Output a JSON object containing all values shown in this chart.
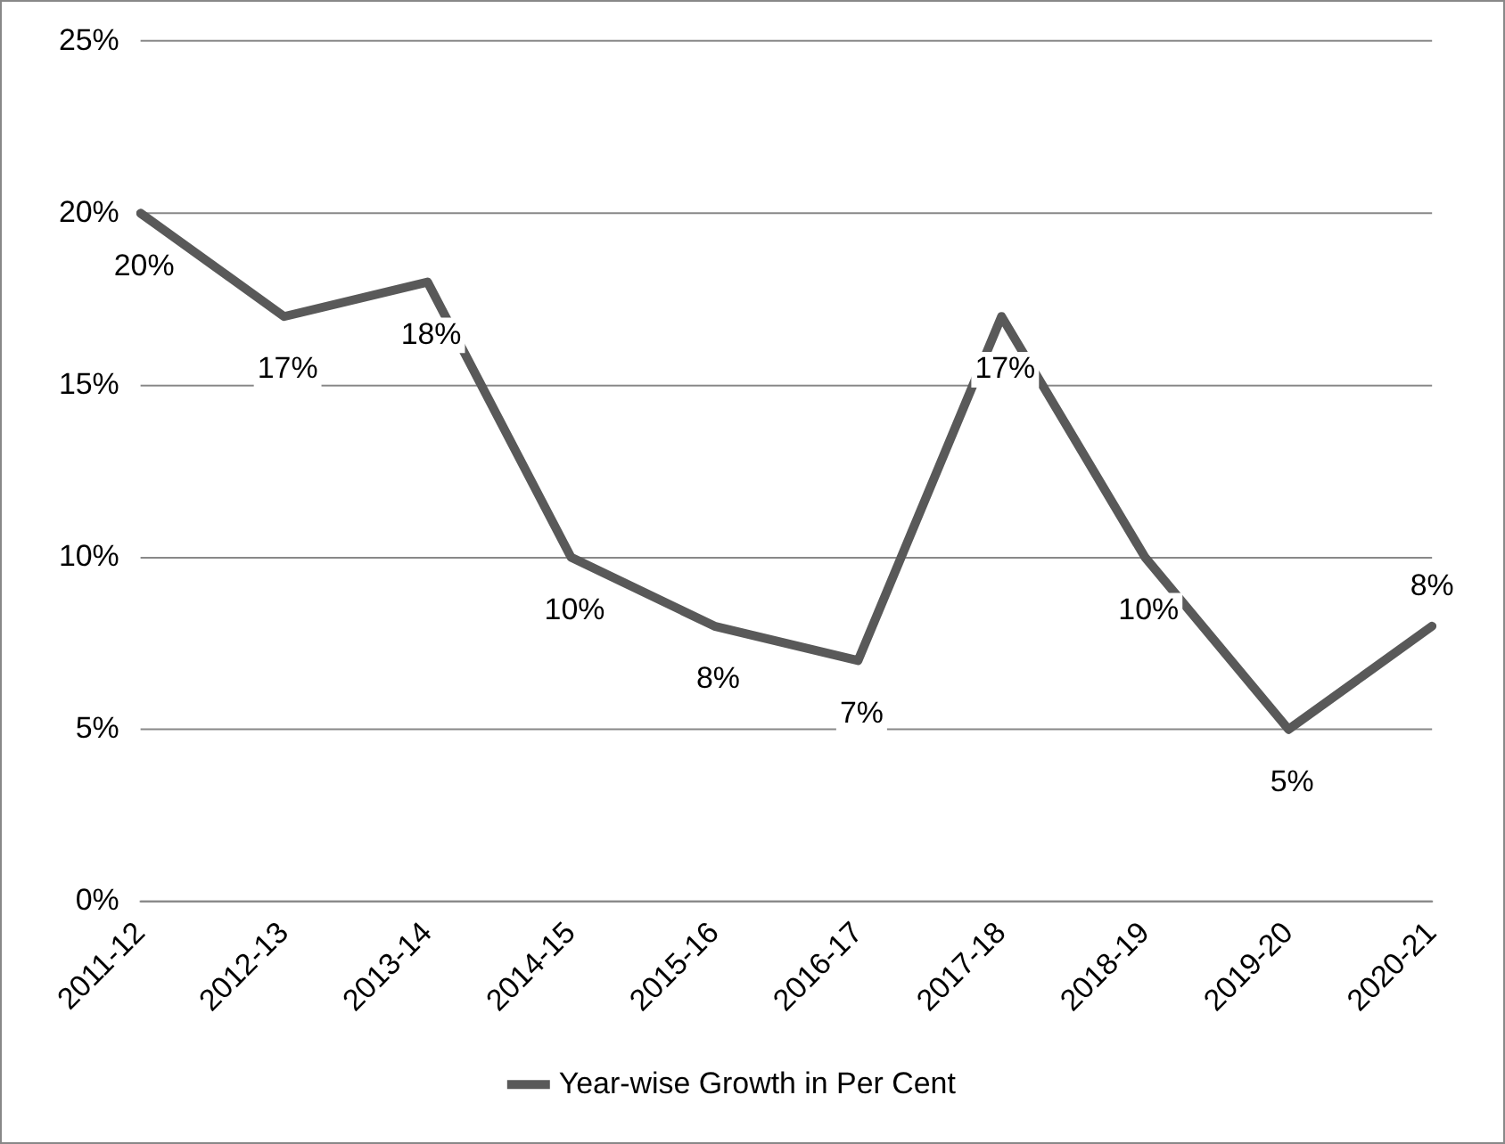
{
  "chart_data": {
    "type": "line",
    "categories": [
      "2011-12",
      "2012-13",
      "2013-14",
      "2014-15",
      "2015-16",
      "2016-17",
      "2017-18",
      "2018-19",
      "2019-20",
      "2020-21"
    ],
    "series": [
      {
        "name": "Year-wise Growth in Per Cent",
        "color": "#595959",
        "values": [
          20,
          17,
          18,
          10,
          8,
          7,
          17,
          10,
          5,
          8
        ],
        "value_labels": [
          "20%",
          "17%",
          "18%",
          "10%",
          "8%",
          "7%",
          "17%",
          "10%",
          "5%",
          "8%"
        ]
      }
    ],
    "ylim": [
      0,
      25
    ],
    "yticks": [
      {
        "value": 0,
        "label": "0%"
      },
      {
        "value": 5,
        "label": "5%"
      },
      {
        "value": 10,
        "label": "10%"
      },
      {
        "value": 15,
        "label": "15%"
      },
      {
        "value": 20,
        "label": "20%"
      },
      {
        "value": 25,
        "label": "25%"
      }
    ],
    "grid": "y",
    "legend": "bottom",
    "marker": "none",
    "line_style": "solid"
  }
}
